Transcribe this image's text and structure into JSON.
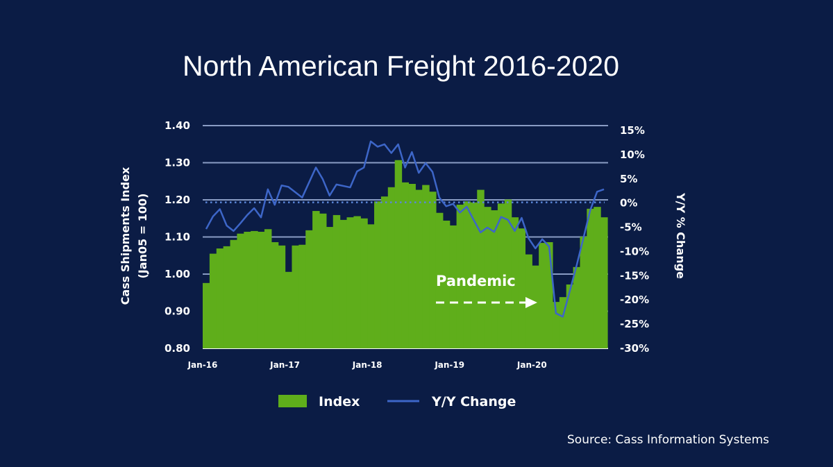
{
  "chart_data": {
    "type": "bar+line",
    "title": "North American Freight 2016-2020",
    "ylabel": "Cass Shipments Index",
    "ylabel2": "(Jan05 = 100)",
    "y2label": "Y/Y % Change",
    "ylim": [
      0.8,
      1.4
    ],
    "yticks": [
      "1.40",
      "1.30",
      "1.20",
      "1.10",
      "1.00",
      "0.90",
      "0.80"
    ],
    "y2lim": [
      -30,
      15
    ],
    "y2ticks": [
      "15%",
      "10%",
      "5%",
      "0%",
      "-5%",
      "-10%",
      "-15%",
      "-20%",
      "-25%",
      "-30%"
    ],
    "xticks": [
      "Jan-16",
      "Jan-17",
      "Jan-18",
      "Jan-19",
      "Jan-20"
    ],
    "grid": true,
    "legend_placement": "bottom",
    "months": [
      "Jan-16",
      "Feb-16",
      "Mar-16",
      "Apr-16",
      "May-16",
      "Jun-16",
      "Jul-16",
      "Aug-16",
      "Sep-16",
      "Oct-16",
      "Nov-16",
      "Dec-16",
      "Jan-17",
      "Feb-17",
      "Mar-17",
      "Apr-17",
      "May-17",
      "Jun-17",
      "Jul-17",
      "Aug-17",
      "Sep-17",
      "Oct-17",
      "Nov-17",
      "Dec-17",
      "Jan-18",
      "Feb-18",
      "Mar-18",
      "Apr-18",
      "May-18",
      "Jun-18",
      "Jul-18",
      "Aug-18",
      "Sep-18",
      "Oct-18",
      "Nov-18",
      "Dec-18",
      "Jan-19",
      "Feb-19",
      "Mar-19",
      "Apr-19",
      "May-19",
      "Jun-19",
      "Jul-19",
      "Aug-19",
      "Sep-19",
      "Oct-19",
      "Nov-19",
      "Dec-19",
      "Jan-20",
      "Feb-20",
      "Mar-20",
      "Apr-20",
      "May-20",
      "Jun-20",
      "Jul-20",
      "Aug-20",
      "Sep-20",
      "Oct-20",
      "Nov-20"
    ],
    "series": [
      {
        "name": "Index",
        "type": "bar",
        "axis": "left",
        "color": "#5fae1b",
        "values": [
          0.976,
          1.055,
          1.069,
          1.075,
          1.092,
          1.109,
          1.114,
          1.116,
          1.114,
          1.121,
          1.086,
          1.077,
          1.006,
          1.077,
          1.079,
          1.118,
          1.17,
          1.163,
          1.127,
          1.159,
          1.146,
          1.153,
          1.156,
          1.15,
          1.134,
          1.196,
          1.209,
          1.234,
          1.307,
          1.247,
          1.243,
          1.227,
          1.24,
          1.222,
          1.165,
          1.144,
          1.131,
          1.187,
          1.196,
          1.193,
          1.227,
          1.181,
          1.172,
          1.19,
          1.201,
          1.153,
          1.123,
          1.053,
          1.023,
          1.084,
          1.086,
          0.925,
          0.938,
          0.972,
          1.019,
          1.101,
          1.176,
          1.181,
          1.153
        ]
      },
      {
        "name": "Y/Y Change",
        "type": "line",
        "axis": "right",
        "color": "#3d66c8",
        "values": [
          -5.5,
          -2.9,
          -1.4,
          -4.8,
          -5.9,
          -4.3,
          -2.6,
          -1.2,
          -3.1,
          2.7,
          -0.5,
          3.5,
          3.2,
          2.1,
          1.0,
          4.1,
          7.2,
          4.8,
          1.4,
          3.7,
          3.4,
          3.1,
          6.4,
          7.2,
          12.6,
          11.5,
          12.0,
          10.2,
          12.0,
          7.2,
          10.4,
          6.1,
          8.1,
          6.3,
          1.0,
          -0.8,
          -0.3,
          -2.1,
          -0.9,
          -3.6,
          -6.2,
          -5.2,
          -6.1,
          -3.0,
          -3.6,
          -5.9,
          -3.2,
          -7.4,
          -9.5,
          -7.6,
          -9.1,
          -22.9,
          -23.6,
          -18.4,
          -13.1,
          -7.4,
          -1.6,
          2.2,
          2.7
        ]
      }
    ],
    "annotation": "Pandemic",
    "colors": {
      "background": "#0b1c45",
      "grid": "#8a9cc4",
      "zero_line": "#5b86d8"
    }
  },
  "source": "Source: Cass Information Systems"
}
